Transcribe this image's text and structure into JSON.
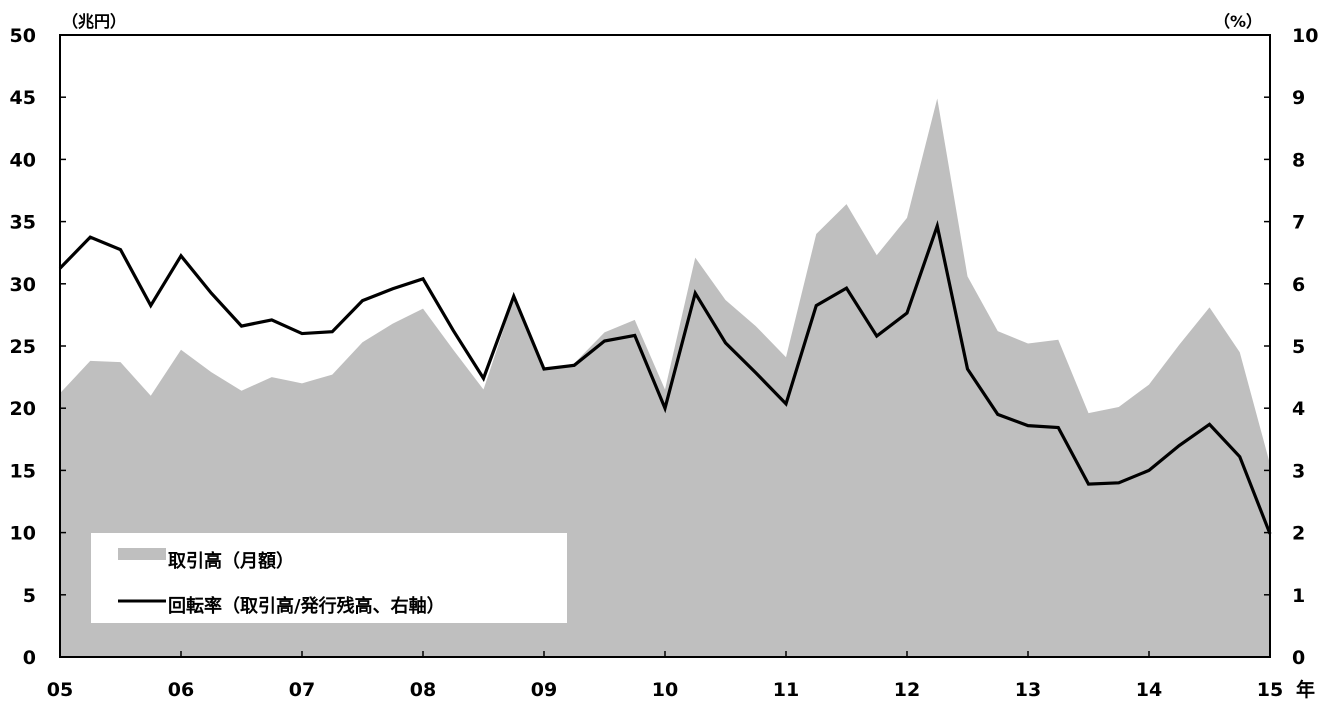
{
  "chart_data": {
    "type": "area",
    "x": [
      "05.00",
      "05.25",
      "05.50",
      "05.75",
      "06.00",
      "06.25",
      "06.50",
      "06.75",
      "07.00",
      "07.25",
      "07.50",
      "07.75",
      "08.00",
      "08.25",
      "08.50",
      "08.75",
      "09.00",
      "09.25",
      "09.50",
      "09.75",
      "10.00",
      "10.25",
      "10.50",
      "10.75",
      "11.00",
      "11.25",
      "11.50",
      "11.75",
      "12.00",
      "12.25",
      "12.50",
      "12.75",
      "13.00",
      "13.25",
      "13.50",
      "13.75",
      "14.00",
      "14.25",
      "14.50",
      "14.75",
      "15.00"
    ],
    "x_tick_labels": [
      "05",
      "06",
      "07",
      "08",
      "09",
      "10",
      "11",
      "12",
      "13",
      "14",
      "15"
    ],
    "x_unit": "年",
    "series": [
      {
        "name": "取引高（月額）",
        "axis": "left",
        "style": "area",
        "color": "#bfbfbf",
        "values": [
          21.2,
          23.8,
          23.7,
          21.0,
          24.7,
          22.9,
          21.4,
          22.5,
          22.0,
          22.7,
          25.3,
          26.8,
          28.0,
          24.7,
          21.5,
          28.8,
          23.1,
          23.6,
          26.1,
          27.1,
          21.5,
          32.1,
          28.7,
          26.6,
          24.1,
          34.0,
          36.4,
          32.3,
          35.3,
          44.9,
          30.6,
          26.2,
          25.2,
          25.5,
          19.6,
          20.1,
          21.9,
          25.1,
          28.1,
          24.5,
          15.5
        ]
      },
      {
        "name": "回転率（取引高/発行残高、右軸）",
        "axis": "right",
        "style": "line",
        "color": "#000000",
        "values": [
          6.25,
          6.75,
          6.55,
          5.65,
          6.45,
          5.85,
          5.32,
          5.42,
          5.2,
          5.23,
          5.73,
          5.92,
          6.08,
          5.25,
          4.48,
          5.8,
          4.63,
          4.69,
          5.08,
          5.17,
          4.0,
          5.85,
          5.05,
          4.57,
          4.07,
          5.65,
          5.93,
          5.16,
          5.53,
          6.93,
          4.63,
          3.9,
          3.72,
          3.69,
          2.78,
          2.8,
          3.0,
          3.4,
          3.74,
          3.22,
          1.98
        ]
      }
    ],
    "left_axis": {
      "unit": "（兆円）",
      "ylim": [
        0,
        50
      ],
      "ticks": [
        "0",
        "5",
        "10",
        "15",
        "20",
        "25",
        "30",
        "35",
        "40",
        "45",
        "50"
      ]
    },
    "right_axis": {
      "unit": "（%）",
      "ylim": [
        0,
        10
      ],
      "ticks": [
        "0",
        "1",
        "2",
        "3",
        "4",
        "5",
        "6",
        "7",
        "8",
        "9",
        "10"
      ]
    },
    "grid": false,
    "legend_position": "bottom-left"
  }
}
